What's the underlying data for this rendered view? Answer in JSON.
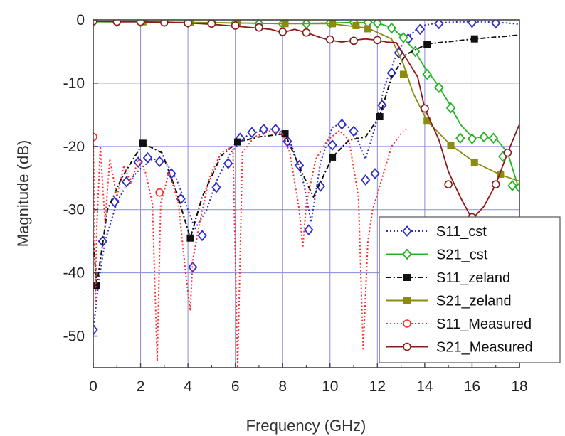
{
  "chart_data": {
    "type": "line",
    "title": "",
    "xlabel": "Frequency (GHz)",
    "ylabel": "Magnitude (dB)",
    "xlim": [
      0,
      18
    ],
    "ylim": [
      -55,
      0
    ],
    "x_ticks": [
      "0",
      "2",
      "4",
      "6",
      "8",
      "10",
      "12",
      "14",
      "16",
      "18"
    ],
    "y_ticks": [
      "0",
      "-10",
      "-20",
      "-30",
      "-40",
      "-50"
    ],
    "grid": true,
    "legend_position": "bottom-right",
    "series": [
      {
        "name": "S11_cst",
        "color": "#2d2dcf",
        "line": "dotted",
        "marker": "diamond-open",
        "points": [
          [
            0.0,
            -49
          ],
          [
            0.25,
            -41
          ],
          [
            0.5,
            -35
          ],
          [
            1.0,
            -28.8
          ],
          [
            1.5,
            -25.5
          ],
          [
            2.0,
            -23.5
          ],
          [
            2.5,
            -22
          ],
          [
            3.0,
            -22.2
          ],
          [
            3.5,
            -25
          ],
          [
            4.0,
            -30
          ],
          [
            4.3,
            -33
          ],
          [
            4.8,
            -30
          ],
          [
            5.2,
            -25.5
          ],
          [
            5.8,
            -21
          ],
          [
            6.5,
            -18.3
          ],
          [
            7.0,
            -17.6
          ],
          [
            7.6,
            -17.2
          ],
          [
            8.0,
            -17.8
          ],
          [
            8.4,
            -20
          ],
          [
            8.9,
            -26
          ],
          [
            9.2,
            -32
          ],
          [
            9.6,
            -22.5
          ],
          [
            10.1,
            -17
          ],
          [
            10.5,
            -16.3
          ],
          [
            11.0,
            -17.5
          ],
          [
            11.5,
            -22
          ],
          [
            11.9,
            -17
          ],
          [
            12.3,
            -10.5
          ],
          [
            12.8,
            -5.5
          ],
          [
            13.2,
            -3
          ],
          [
            13.8,
            -1
          ],
          [
            14.5,
            -0.5
          ],
          [
            15.5,
            -0.3
          ],
          [
            16.5,
            -0.3
          ],
          [
            17.5,
            -0.5
          ],
          [
            18.0,
            -0.7
          ]
        ],
        "markers": [
          [
            0.0,
            -49
          ],
          [
            0.4,
            -35
          ],
          [
            0.9,
            -28.8
          ],
          [
            1.4,
            -25.6
          ],
          [
            1.9,
            -22.5
          ],
          [
            2.3,
            -21.8
          ],
          [
            2.8,
            -22.4
          ],
          [
            3.3,
            -24.3
          ],
          [
            3.7,
            -28.3
          ],
          [
            4.2,
            -39.1
          ],
          [
            4.6,
            -34.1
          ],
          [
            5.2,
            -26.5
          ],
          [
            5.7,
            -22.7
          ],
          [
            6.2,
            -18.7
          ],
          [
            6.7,
            -17.8
          ],
          [
            7.2,
            -17.3
          ],
          [
            7.7,
            -17.3
          ],
          [
            8.2,
            -19.2
          ],
          [
            8.7,
            -23
          ],
          [
            9.1,
            -33.2
          ],
          [
            9.6,
            -26.3
          ],
          [
            10.1,
            -19.8
          ],
          [
            10.5,
            -16.5
          ],
          [
            11.0,
            -17.6
          ],
          [
            11.5,
            -25.3
          ],
          [
            11.9,
            -24.3
          ],
          [
            12.2,
            -13.5
          ],
          [
            12.6,
            -8.4
          ],
          [
            12.9,
            -5.2
          ],
          [
            13.3,
            -3
          ],
          [
            13.8,
            -1.5
          ],
          [
            14.6,
            -0.6
          ],
          [
            16.0,
            -0.4
          ],
          [
            17.0,
            -0.5
          ]
        ]
      },
      {
        "name": "S21_cst",
        "color": "#24b324",
        "line": "solid",
        "marker": "diamond-open",
        "points": [
          [
            0.0,
            -0.3
          ],
          [
            2,
            -0.3
          ],
          [
            4,
            -0.4
          ],
          [
            6,
            -0.5
          ],
          [
            8,
            -0.6
          ],
          [
            10,
            -0.5
          ],
          [
            11,
            -0.4
          ],
          [
            12,
            -0.5
          ],
          [
            12.6,
            -1.2
          ],
          [
            13.0,
            -2.5
          ],
          [
            13.5,
            -4.5
          ],
          [
            14,
            -7.5
          ],
          [
            14.5,
            -10
          ],
          [
            15,
            -13
          ],
          [
            15.5,
            -16.5
          ],
          [
            16,
            -18.5
          ],
          [
            16.5,
            -18.6
          ],
          [
            17,
            -18.7
          ],
          [
            17.5,
            -21
          ],
          [
            18,
            -27
          ]
        ],
        "markers": [
          [
            0.0,
            -0.3
          ],
          [
            1.0,
            -0.3
          ],
          [
            2.0,
            -0.3
          ],
          [
            3.0,
            -0.3
          ],
          [
            4.0,
            -0.4
          ],
          [
            5.0,
            -0.4
          ],
          [
            6.0,
            -0.5
          ],
          [
            7.0,
            -0.6
          ],
          [
            8.0,
            -0.6
          ],
          [
            9.0,
            -0.6
          ],
          [
            10.0,
            -0.5
          ],
          [
            11.0,
            -0.4
          ],
          [
            11.6,
            -0.4
          ],
          [
            12.0,
            -0.5
          ],
          [
            12.6,
            -1.3
          ],
          [
            13.1,
            -2.8
          ],
          [
            13.6,
            -5
          ],
          [
            14.1,
            -8.6
          ],
          [
            14.6,
            -10.7
          ],
          [
            15.1,
            -13.9
          ],
          [
            15.5,
            -18.7
          ],
          [
            16.0,
            -18.8
          ],
          [
            16.5,
            -18.5
          ],
          [
            16.9,
            -18.7
          ],
          [
            17.3,
            -21.6
          ],
          [
            17.7,
            -26.2
          ],
          [
            18.0,
            -26.5
          ]
        ]
      },
      {
        "name": "S11_zeland",
        "color": "#111111",
        "line": "dashdot",
        "marker": "square-filled",
        "points": [
          [
            0.0,
            -35
          ],
          [
            0.15,
            -42
          ],
          [
            0.6,
            -30
          ],
          [
            1.2,
            -25
          ],
          [
            2.1,
            -19.5
          ],
          [
            2.9,
            -21
          ],
          [
            3.5,
            -27
          ],
          [
            4.1,
            -34.5
          ],
          [
            4.6,
            -28
          ],
          [
            5.4,
            -21.5
          ],
          [
            6.1,
            -19.3
          ],
          [
            7.0,
            -18.5
          ],
          [
            8.1,
            -18
          ],
          [
            8.8,
            -24
          ],
          [
            9.3,
            -28
          ],
          [
            10.1,
            -21.7
          ],
          [
            10.8,
            -19
          ],
          [
            11.5,
            -18.5
          ],
          [
            12.1,
            -15.2
          ],
          [
            12.6,
            -9
          ],
          [
            13.2,
            -5.5
          ],
          [
            14.1,
            -3.8
          ],
          [
            16.1,
            -3
          ],
          [
            18,
            -2.4
          ]
        ],
        "markers": [
          [
            0.15,
            -42
          ],
          [
            2.1,
            -19.5
          ],
          [
            4.1,
            -34.5
          ],
          [
            6.1,
            -19.3
          ],
          [
            8.1,
            -18
          ],
          [
            10.1,
            -21.7
          ],
          [
            12.1,
            -15.3
          ],
          [
            14.1,
            -3.9
          ],
          [
            16.1,
            -3
          ]
        ]
      },
      {
        "name": "S21_zeland",
        "color": "#8b8b10",
        "line": "solid",
        "marker": "square-filled",
        "points": [
          [
            0.0,
            -0.2
          ],
          [
            2,
            -0.3
          ],
          [
            4,
            -0.4
          ],
          [
            6,
            -0.5
          ],
          [
            8,
            -0.6
          ],
          [
            10,
            -0.6
          ],
          [
            11.6,
            -1.3
          ],
          [
            12.6,
            -3
          ],
          [
            13.1,
            -7
          ],
          [
            13.5,
            -11.5
          ],
          [
            14.1,
            -16
          ],
          [
            15.1,
            -19.8
          ],
          [
            16.1,
            -22.5
          ],
          [
            17.2,
            -24.5
          ],
          [
            18,
            -25.5
          ]
        ],
        "markers": [
          [
            2.1,
            -0.3
          ],
          [
            4.1,
            -0.4
          ],
          [
            6.1,
            -0.5
          ],
          [
            8.1,
            -0.6
          ],
          [
            10.1,
            -0.6
          ],
          [
            11.1,
            -0.9
          ],
          [
            11.6,
            -1.4
          ],
          [
            13.1,
            -8.6
          ],
          [
            14.1,
            -16
          ],
          [
            15.1,
            -19.8
          ],
          [
            16.1,
            -22.6
          ],
          [
            17.2,
            -24.4
          ]
        ]
      },
      {
        "name": "S11_Measured",
        "color": "#ff2a2a",
        "line": "dotted",
        "marker": "circle-open",
        "points": [
          [
            0.0,
            -18.5
          ],
          [
            0.05,
            -30
          ],
          [
            0.1,
            -45
          ],
          [
            0.15,
            -33
          ],
          [
            0.3,
            -20
          ],
          [
            0.5,
            -32
          ],
          [
            0.7,
            -22
          ],
          [
            1.0,
            -28
          ],
          [
            1.3,
            -23
          ],
          [
            1.6,
            -26
          ],
          [
            1.9,
            -22
          ],
          [
            2.2,
            -24
          ],
          [
            2.5,
            -29
          ],
          [
            2.7,
            -54
          ],
          [
            2.85,
            -29
          ],
          [
            3.0,
            -27
          ],
          [
            3.2,
            -24
          ],
          [
            3.6,
            -29
          ],
          [
            3.9,
            -40
          ],
          [
            4.1,
            -46
          ],
          [
            4.2,
            -38
          ],
          [
            4.5,
            -32
          ],
          [
            4.9,
            -25
          ],
          [
            5.4,
            -21
          ],
          [
            5.9,
            -20
          ],
          [
            6.1,
            -55
          ],
          [
            6.3,
            -21
          ],
          [
            6.8,
            -18.5
          ],
          [
            7.5,
            -17.5
          ],
          [
            8.0,
            -18
          ],
          [
            8.3,
            -21
          ],
          [
            8.7,
            -30
          ],
          [
            8.85,
            -36
          ],
          [
            9.0,
            -29
          ],
          [
            9.4,
            -22
          ],
          [
            9.9,
            -19
          ],
          [
            10.4,
            -17.5
          ],
          [
            10.8,
            -19
          ],
          [
            11.2,
            -28
          ],
          [
            11.4,
            -52
          ],
          [
            11.6,
            -35
          ],
          [
            11.8,
            -30
          ],
          [
            12.2,
            -25
          ],
          [
            12.6,
            -20
          ],
          [
            13.0,
            -18
          ],
          [
            13.3,
            -17
          ]
        ],
        "markers": [
          [
            0.0,
            -18.5
          ],
          [
            2.8,
            -27.3
          ]
        ]
      },
      {
        "name": "S21_Measured",
        "color": "#8b1a1a",
        "line": "solid",
        "marker": "circle-open",
        "points": [
          [
            0.0,
            -0.2
          ],
          [
            1,
            -0.3
          ],
          [
            2,
            -0.3
          ],
          [
            3,
            -0.4
          ],
          [
            4,
            -0.5
          ],
          [
            5,
            -0.7
          ],
          [
            6,
            -1.0
          ],
          [
            7,
            -1.3
          ],
          [
            7.5,
            -1.5
          ],
          [
            8,
            -2
          ],
          [
            8.5,
            -1.5
          ],
          [
            9,
            -2
          ],
          [
            9.6,
            -2.8
          ],
          [
            10,
            -3.2
          ],
          [
            10.5,
            -3.5
          ],
          [
            11,
            -3.2
          ],
          [
            11.5,
            -3.0
          ],
          [
            12,
            -3.2
          ],
          [
            12.4,
            -3.5
          ],
          [
            12.8,
            -3.6
          ],
          [
            13.2,
            -6
          ],
          [
            13.7,
            -9
          ],
          [
            14,
            -14
          ],
          [
            14.6,
            -19
          ],
          [
            15,
            -24
          ],
          [
            15.5,
            -28
          ],
          [
            16,
            -31.5
          ],
          [
            16.5,
            -29.5
          ],
          [
            17,
            -26
          ],
          [
            17.5,
            -21
          ],
          [
            18,
            -16.5
          ]
        ],
        "markers": [
          [
            0.0,
            -0.2
          ],
          [
            1.0,
            -0.3
          ],
          [
            2.0,
            -0.3
          ],
          [
            3.0,
            -0.4
          ],
          [
            4.0,
            -0.5
          ],
          [
            5.0,
            -0.6
          ],
          [
            6.0,
            -0.9
          ],
          [
            7.0,
            -1.2
          ],
          [
            8.0,
            -1.9
          ],
          [
            9.0,
            -2.0
          ],
          [
            10.0,
            -3.1
          ],
          [
            11.0,
            -3.3
          ],
          [
            12.0,
            -3.2
          ],
          [
            14.0,
            -14
          ],
          [
            15.0,
            -26
          ],
          [
            16.0,
            -31.2
          ],
          [
            17.0,
            -26
          ],
          [
            17.5,
            -21
          ]
        ]
      }
    ]
  }
}
